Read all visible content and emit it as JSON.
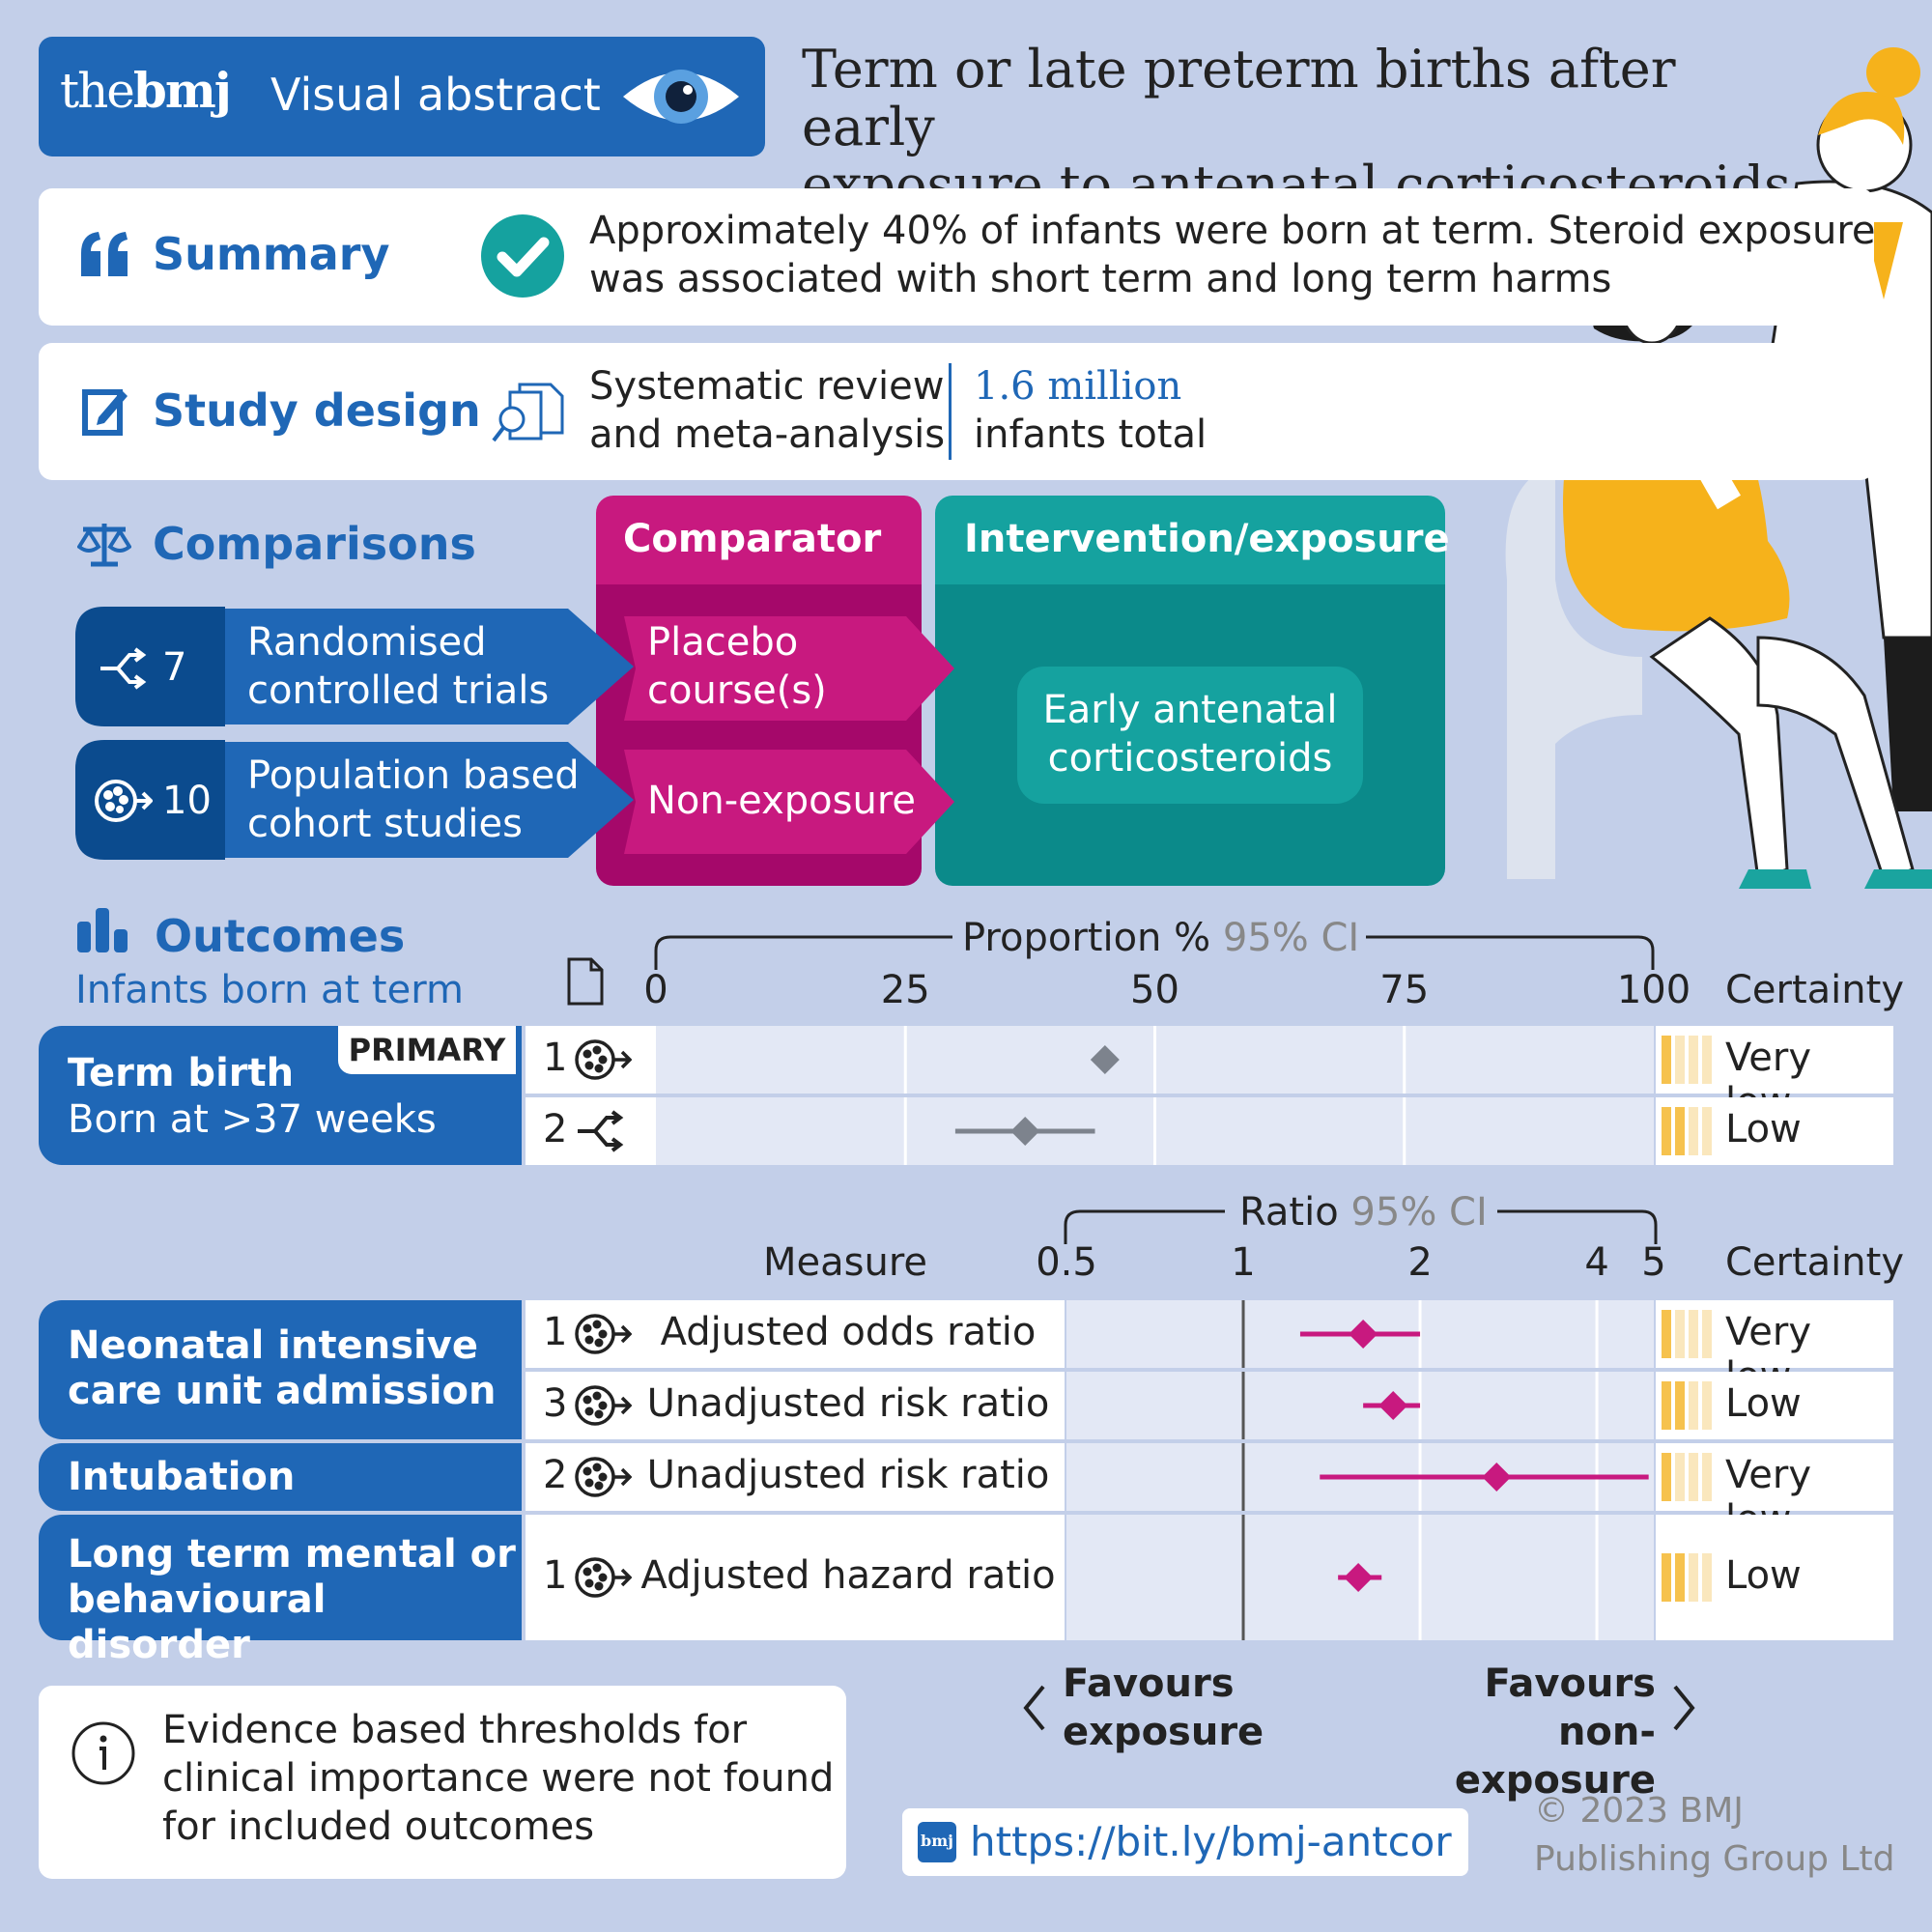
{
  "header": {
    "brand_the": "the",
    "brand_bmj": "bmj",
    "brand_label": "Visual abstract",
    "title_line1": "Term or late preterm births after early",
    "title_line2": "exposure to antenatal corticosteroids"
  },
  "summary": {
    "label": "Summary",
    "line1": "Approximately 40% of infants were born at term. Steroid exposure",
    "line2": "was associated with short term and long term harms"
  },
  "study_design": {
    "label": "Study design",
    "design_line1": "Systematic review",
    "design_line2": "and meta-analysis",
    "total_value": "1.6 million",
    "total_label": "infants total"
  },
  "comparisons": {
    "label": "Comparisons",
    "comparator_header": "Comparator",
    "intervention_header": "Intervention/exposure",
    "rct_count": "7",
    "rct_line1": "Randomised",
    "rct_line2": "controlled trials",
    "cohort_count": "10",
    "cohort_line1": "Population based",
    "cohort_line2": "cohort studies",
    "placebo_line1": "Placebo",
    "placebo_line2": "course(s)",
    "nonexposure": "Non-exposure",
    "intervention_line1": "Early antenatal",
    "intervention_line2": "corticosteroids"
  },
  "outcomes": {
    "label": "Outcomes",
    "sublabel": "Infants born at term",
    "proportion_title": "Proportion %",
    "ci_label": "95% CI",
    "proportion_ticks": [
      "0",
      "25",
      "50",
      "75",
      "100"
    ],
    "certainty_header": "Certainty",
    "term_title": "Term birth",
    "term_sub": "Born at >37 weeks",
    "primary_badge": "PRIMARY",
    "ratio_title": "Ratio",
    "measure_header": "Measure",
    "ratio_ticks": [
      "0.5",
      "1",
      "2",
      "4",
      "5"
    ],
    "favours_left_line1": "Favours",
    "favours_left_line2": "exposure",
    "favours_right_line1": "Favours",
    "favours_right_line2": "non-exposure"
  },
  "chart_data": [
    {
      "type": "scatter",
      "xlabel": "Proportion %",
      "xlim": [
        0,
        100
      ],
      "rows": [
        {
          "studies": "1",
          "design": "cohort",
          "estimate": 45,
          "ci": null,
          "certainty": "Very low",
          "certainty_level": 1
        },
        {
          "studies": "2",
          "design": "rct",
          "estimate": 37,
          "ci": [
            30,
            44
          ],
          "certainty": "Low",
          "certainty_level": 2
        }
      ]
    },
    {
      "type": "scatter",
      "xlabel": "Ratio",
      "xscale": "log",
      "xlim": [
        0.5,
        5
      ],
      "rows": [
        {
          "outcome_line1": "Neonatal intensive",
          "outcome_line2": "care unit admission",
          "studies": "1",
          "design": "cohort",
          "measure": "Adjusted odds ratio",
          "estimate": 1.6,
          "ci": [
            1.25,
            2.0
          ],
          "certainty": "Very low",
          "certainty_level": 1
        },
        {
          "studies": "3",
          "design": "cohort",
          "measure": "Unadjusted risk ratio",
          "estimate": 1.8,
          "ci": [
            1.6,
            2.0
          ],
          "certainty": "Low",
          "certainty_level": 2
        },
        {
          "outcome_line1": "Intubation",
          "studies": "2",
          "design": "cohort",
          "measure": "Unadjusted risk ratio",
          "estimate": 2.7,
          "ci": [
            1.35,
            4.9
          ],
          "certainty": "Very low",
          "certainty_level": 1
        },
        {
          "outcome_line1": "Long term mental or",
          "outcome_line2": "behavioural disorder",
          "studies": "1",
          "design": "cohort",
          "measure": "Adjusted hazard ratio",
          "estimate": 1.57,
          "ci": [
            1.45,
            1.72
          ],
          "certainty": "Low",
          "certainty_level": 2
        }
      ]
    }
  ],
  "footer": {
    "note_line1": "Evidence based thresholds for",
    "note_line2": "clinical importance were not found",
    "note_line3": "for included outcomes",
    "link_badge": "bmj",
    "link": "https://bit.ly/bmj-antcor",
    "copyright_line1": "© 2023 BMJ",
    "copyright_line2": "Publishing Group Ltd"
  },
  "colors": {
    "brand_blue": "#1f67b6",
    "dark_blue": "#0b4b8e",
    "magenta": "#c8197f",
    "teal": "#15a29f",
    "grey_marker": "#7d838d",
    "certainty_gold": "#f6c24e",
    "background": "#c3cfe9"
  }
}
